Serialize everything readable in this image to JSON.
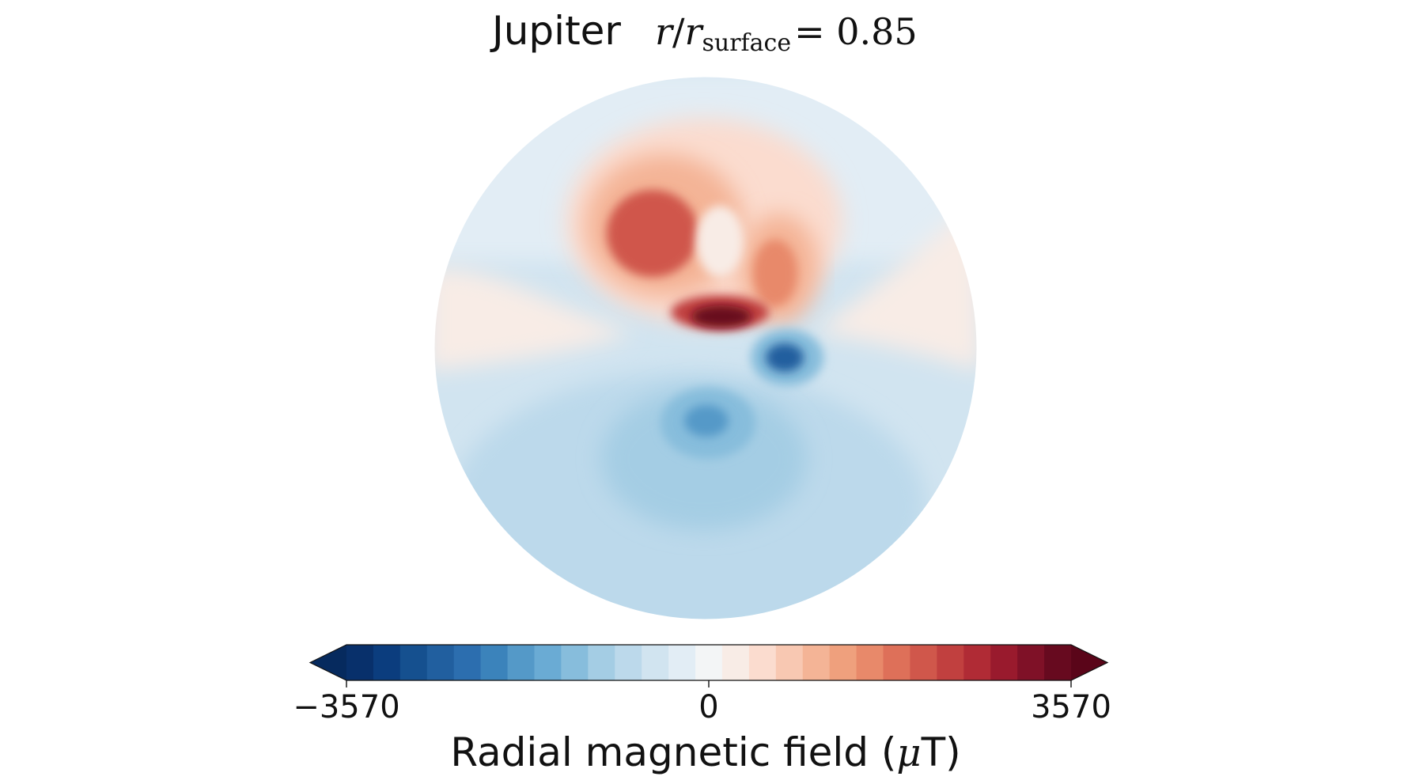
{
  "chart_data": {
    "type": "heatmap",
    "projection": "orthographic disk",
    "title": {
      "body": "Jupiter",
      "ratio_numerator": "r",
      "ratio_denominator": "r",
      "ratio_subscript": "surface",
      "ratio_value": "= 0.85"
    },
    "colorbar": {
      "label_text": "Radial magnetic field (",
      "label_unit_mu": "μ",
      "label_unit_rest": "T)",
      "vmin": -3570,
      "vmax": 3570,
      "ticks": [
        -3570,
        0,
        3570
      ],
      "tick_labels": [
        "−3570",
        "0",
        "3570"
      ],
      "extend": "both",
      "colormap": "RdBu_r",
      "levels": [
        "#08306b",
        "#0b3d7e",
        "#15508f",
        "#215f9f",
        "#2c6eaf",
        "#3b83bb",
        "#5499c8",
        "#6aabd4",
        "#87bddc",
        "#a4cde4",
        "#bcd9eb",
        "#d1e4f0",
        "#e2edf5",
        "#f3f5f6",
        "#f8ece6",
        "#fbdccf",
        "#f8c8b2",
        "#f4b496",
        "#efa07d",
        "#e8896a",
        "#de7059",
        "#d0574b",
        "#c1403f",
        "#b02b35",
        "#991a2d",
        "#7f1127",
        "#670a1f"
      ],
      "under_color": "#062a5e",
      "over_color": "#5a0519"
    },
    "features": [
      {
        "kind": "background_negative",
        "value": -600
      },
      {
        "kind": "weak_band_positive",
        "value": 500
      },
      {
        "kind": "positive_lobe_left",
        "value": 2000
      },
      {
        "kind": "positive_lobe_right",
        "value": 1700
      },
      {
        "kind": "strong_positive_crescent",
        "value": 3500
      },
      {
        "kind": "strong_negative_spot",
        "value": -2600
      },
      {
        "kind": "negative_spot_lower",
        "value": -1800
      },
      {
        "kind": "broad_negative_lower",
        "value": -900
      }
    ]
  }
}
